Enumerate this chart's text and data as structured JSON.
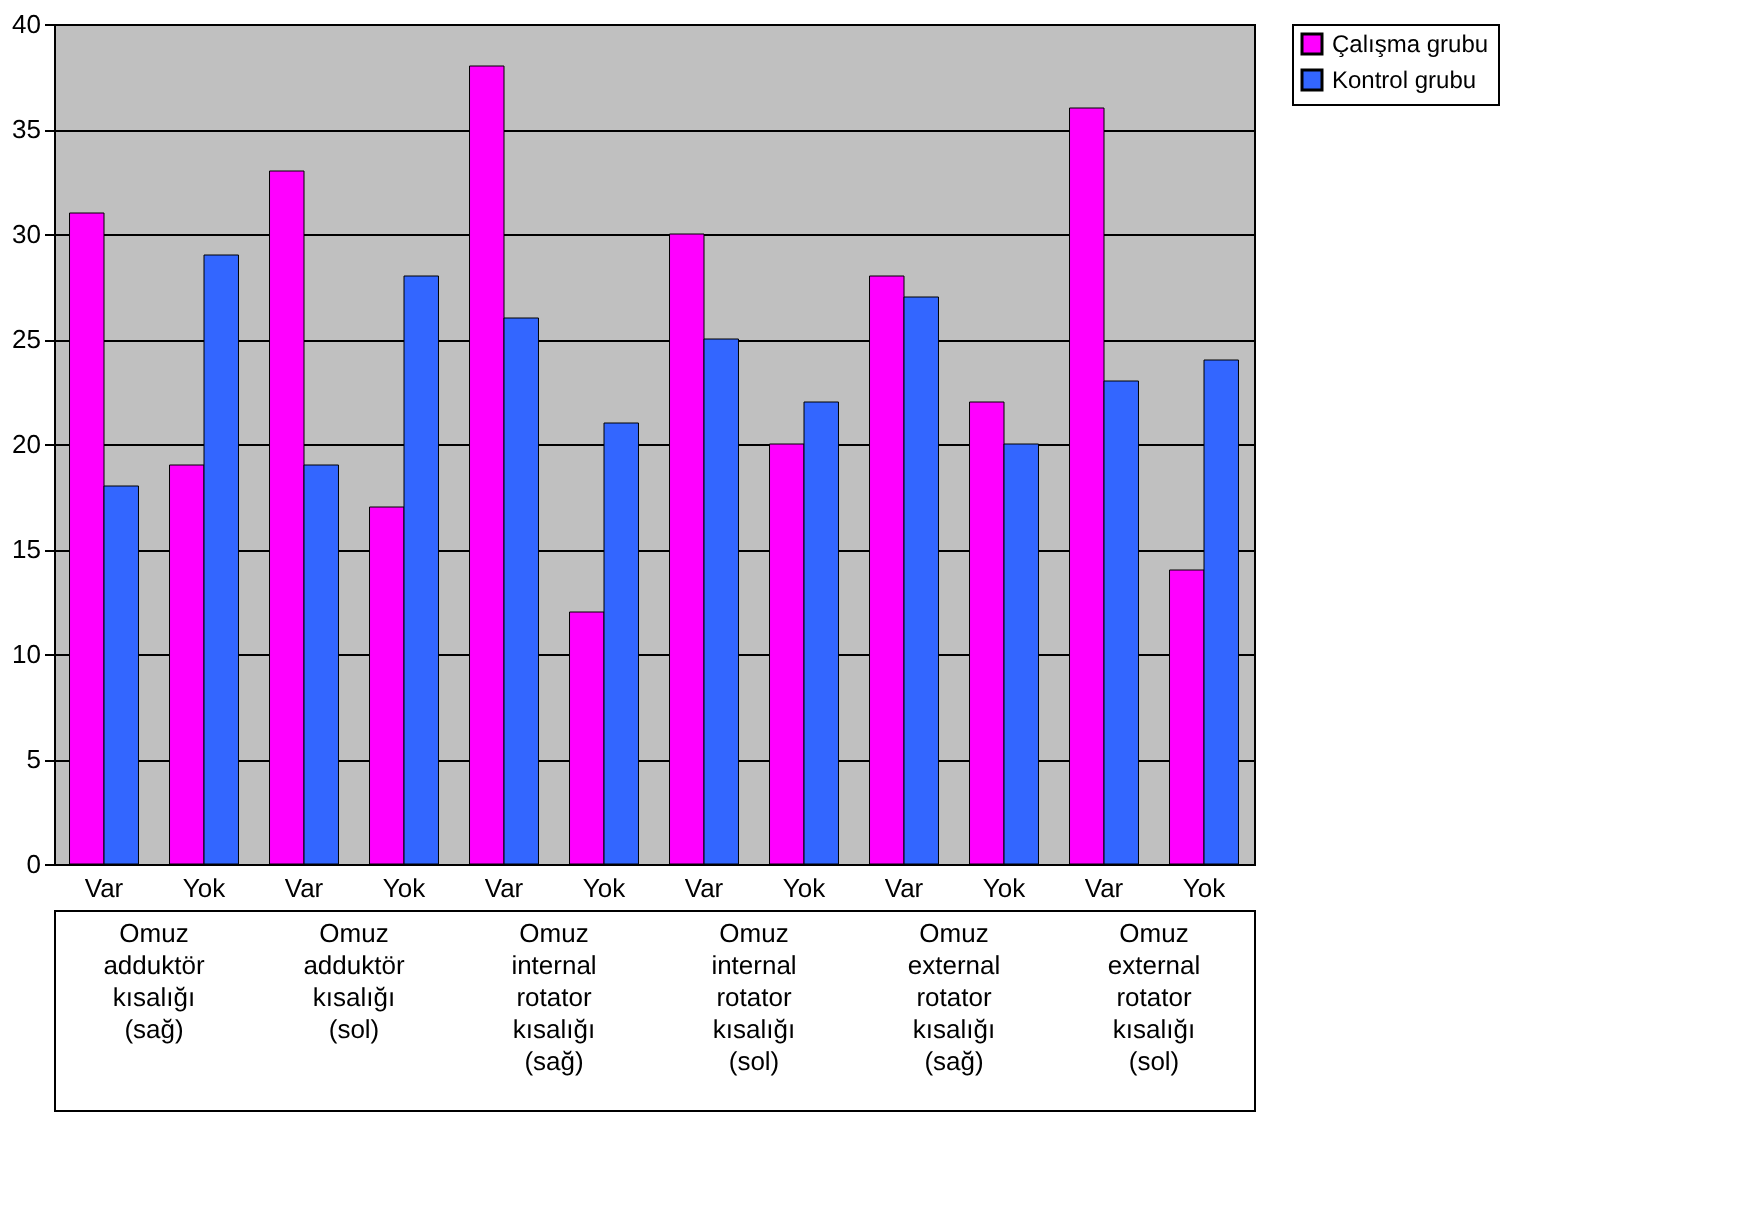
{
  "chart_data": {
    "type": "bar",
    "categories": [
      "Var",
      "Yok",
      "Var",
      "Yok",
      "Var",
      "Yok",
      "Var",
      "Yok",
      "Var",
      "Yok",
      "Var",
      "Yok"
    ],
    "series": [
      {
        "name": "Çalışma grubu",
        "color": "#ff00ff",
        "values": [
          31,
          19,
          33,
          17,
          38,
          12,
          30,
          20,
          28,
          22,
          36,
          14
        ]
      },
      {
        "name": "Kontrol grubu",
        "color": "#3366ff",
        "values": [
          18,
          29,
          19,
          28,
          26,
          21,
          25,
          22,
          27,
          20,
          23,
          24
        ]
      }
    ],
    "annotations": [
      "Omuz\nadduktör\nkısalığı\n(sağ)",
      "Omuz\nadduktör\nkısalığı\n(sol)",
      "Omuz\ninternal\nrotator\nkısalığı\n(sağ)",
      "Omuz\ninternal\nrotator\nkısalığı\n(sol)",
      "Omuz\nexternal\nrotator\nkısalığı\n(sağ)",
      "Omuz\nexternal\nrotator\nkısalığı\n(sol)"
    ],
    "ylim": [
      0,
      40
    ],
    "yticks": [
      0,
      5,
      10,
      15,
      20,
      25,
      30,
      35,
      40
    ],
    "grid": "y",
    "legend": "right"
  }
}
